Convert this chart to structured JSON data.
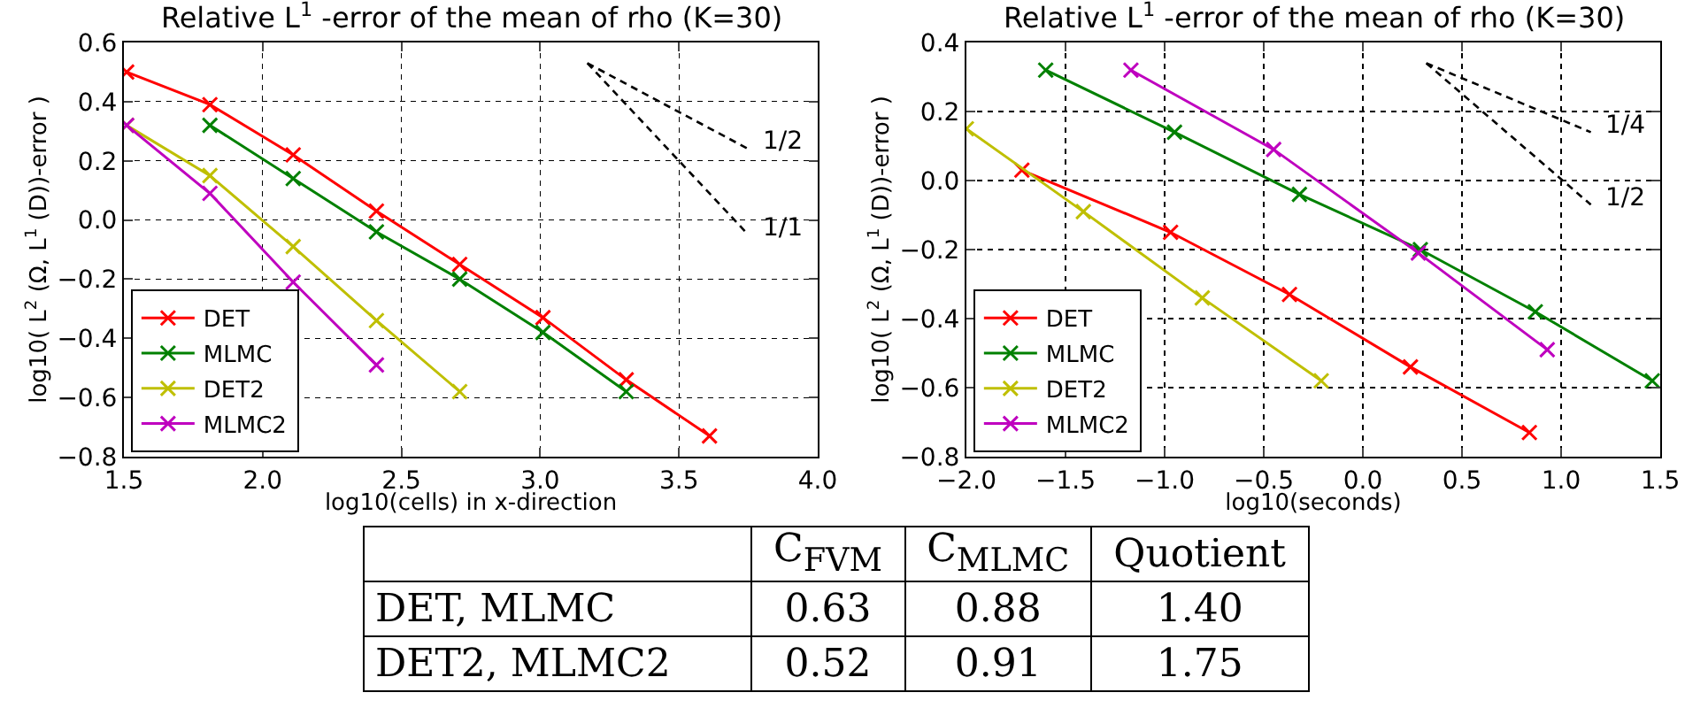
{
  "chart_data": [
    {
      "type": "line",
      "title": "Relative L$^{1}$ -error of the mean of rho (K=30)",
      "xlabel": "log10(cells) in x-direction",
      "ylabel": "log10( L$^{2}$ (Ω, L$^{1}$ (D))-error )",
      "xlim": [
        1.5,
        4.0
      ],
      "xticks": [
        {
          "value": 1.5,
          "label": "1.5"
        },
        {
          "value": 2,
          "label": "2.0"
        },
        {
          "value": 2.5,
          "label": "2.5"
        },
        {
          "value": 3,
          "label": "3.0"
        },
        {
          "value": 3.5,
          "label": "3.5"
        },
        {
          "value": 4,
          "label": "4.0"
        }
      ],
      "ylim": [
        -0.8,
        0.6
      ],
      "yticks": [
        {
          "value": -0.8,
          "label": "−0.8"
        },
        {
          "value": -0.6,
          "label": "−0.6"
        },
        {
          "value": -0.4,
          "label": "−0.4"
        },
        {
          "value": -0.2,
          "label": "−0.2"
        },
        {
          "value": 0,
          "label": "0.0"
        },
        {
          "value": 0.2,
          "label": "0.2"
        },
        {
          "value": 0.4,
          "label": "0.4"
        },
        {
          "value": 0.6,
          "label": "0.6"
        }
      ],
      "grid": true,
      "legend": "bottom left",
      "marker": "cross",
      "line_style": "solid",
      "series": [
        {
          "name": "DET",
          "color": "#ff0000",
          "x": [
            1.51,
            1.81,
            2.11,
            2.41,
            2.71,
            3.01,
            3.31,
            3.61
          ],
          "values": [
            0.5,
            0.39,
            0.22,
            0.03,
            -0.15,
            -0.33,
            -0.54,
            -0.73
          ]
        },
        {
          "name": "MLMC",
          "color": "#008000",
          "x": [
            1.81,
            2.11,
            2.41,
            2.71,
            3.01,
            3.31
          ],
          "values": [
            0.32,
            0.14,
            -0.04,
            -0.2,
            -0.38,
            -0.58
          ]
        },
        {
          "name": "DET2",
          "color": "#bfbf00",
          "x": [
            1.51,
            1.81,
            2.11,
            2.41,
            2.71
          ],
          "values": [
            0.32,
            0.15,
            -0.09,
            -0.34,
            -0.58
          ]
        },
        {
          "name": "MLMC2",
          "color": "#bf00bf",
          "x": [
            1.51,
            1.81,
            2.11,
            2.41
          ],
          "values": [
            0.32,
            0.09,
            -0.21,
            -0.49
          ]
        },
        {
          "color": "#000000",
          "marker": "none",
          "line_style": "dashed",
          "x": [
            3.17,
            3.75
          ],
          "values": [
            0.53,
            0.24
          ]
        },
        {
          "color": "#000000",
          "marker": "none",
          "line_style": "dashed",
          "x": [
            3.17,
            3.75
          ],
          "values": [
            0.53,
            -0.05
          ]
        }
      ],
      "annotations": [
        "1/2",
        "1/1"
      ]
    },
    {
      "type": "line",
      "title": "Relative L$^{1}$ -error of the mean of rho (K=30)",
      "xlabel": "log10(seconds)",
      "ylabel": "log10( L$^{2}$ (Ω, L$^{1}$ (D))-error )",
      "xlim": [
        -2.0,
        1.5
      ],
      "xticks": [
        {
          "value": -2,
          "label": "−2.0"
        },
        {
          "value": -1.5,
          "label": "−1.5"
        },
        {
          "value": -1,
          "label": "−1.0"
        },
        {
          "value": -0.5,
          "label": "−0.5"
        },
        {
          "value": 0,
          "label": "0.0"
        },
        {
          "value": 0.5,
          "label": "0.5"
        },
        {
          "value": 1,
          "label": "1.0"
        },
        {
          "value": 1.5,
          "label": "1.5"
        }
      ],
      "ylim": [
        -0.8,
        0.4
      ],
      "yticks": [
        {
          "value": -0.8,
          "label": "−0.8"
        },
        {
          "value": -0.6,
          "label": "−0.6"
        },
        {
          "value": -0.4,
          "label": "−0.4"
        },
        {
          "value": -0.2,
          "label": "−0.2"
        },
        {
          "value": 0,
          "label": "0.0"
        },
        {
          "value": 0.2,
          "label": "0.2"
        },
        {
          "value": 0.4,
          "label": "0.4"
        }
      ],
      "grid": true,
      "legend": "bottom left",
      "marker": "cross",
      "line_style": "solid",
      "series": [
        {
          "name": "DET",
          "color": "#ff0000",
          "x": [
            -1.72,
            -0.97,
            -0.37,
            0.24,
            0.84
          ],
          "values": [
            0.03,
            -0.15,
            -0.33,
            -0.54,
            -0.73
          ]
        },
        {
          "name": "MLMC",
          "color": "#008000",
          "x": [
            -1.6,
            -0.95,
            -0.32,
            0.29,
            0.87,
            1.46
          ],
          "values": [
            0.32,
            0.14,
            -0.04,
            -0.2,
            -0.38,
            -0.58
          ]
        },
        {
          "name": "DET2",
          "color": "#bfbf00",
          "x": [
            -2.0,
            -1.41,
            -0.81,
            -0.21
          ],
          "values": [
            0.15,
            -0.09,
            -0.34,
            -0.58
          ]
        },
        {
          "name": "MLMC2",
          "color": "#bf00bf",
          "x": [
            -1.17,
            -0.45,
            0.28,
            0.93
          ],
          "values": [
            0.32,
            0.09,
            -0.21,
            -0.49
          ]
        },
        {
          "color": "#000000",
          "marker": "none",
          "line_style": "dashed",
          "x": [
            0.32,
            1.15
          ],
          "values": [
            0.34,
            0.14
          ]
        },
        {
          "color": "#000000",
          "marker": "none",
          "line_style": "dashed",
          "x": [
            0.32,
            1.15
          ],
          "values": [
            0.34,
            -0.07
          ]
        }
      ],
      "annotations": [
        "1/4",
        "1/2"
      ]
    },
    {
      "type": "other",
      "categories": [
        null,
        "C$_{FVM}$",
        "C$_{MLMC}$",
        "Quotient"
      ],
      "y_categories": [
        "DET, MLMC",
        "DET2, MLMC2"
      ],
      "cell_labels": [
        [
          "0.63",
          "0.88",
          "1.40"
        ],
        [
          "0.52",
          "0.91",
          "1.75"
        ]
      ]
    }
  ]
}
